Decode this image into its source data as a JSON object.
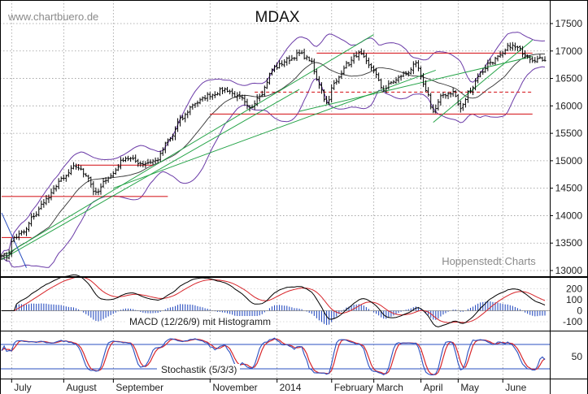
{
  "watermark": "www.chartbuero.de",
  "source": "Hoppenstedt Charts",
  "chart_data": [
    {
      "type": "line",
      "title": "MDAX",
      "ylim": [
        13000,
        17500
      ],
      "yticks": [
        13000,
        13500,
        14000,
        14500,
        15000,
        15500,
        16000,
        16500,
        17000,
        17500
      ],
      "x_labels": [
        "July",
        "August",
        "September",
        "November",
        "2014",
        "February",
        "March",
        "April",
        "May",
        "June"
      ],
      "x_label_positions": [
        6,
        27,
        47,
        86,
        113,
        135,
        152,
        171,
        186,
        204
      ],
      "n_days": 220,
      "close_anchors": [
        [
          0,
          13300
        ],
        [
          2,
          13250
        ],
        [
          5,
          13600
        ],
        [
          9,
          13700
        ],
        [
          13,
          14000
        ],
        [
          18,
          14300
        ],
        [
          24,
          14650
        ],
        [
          30,
          14900
        ],
        [
          34,
          14750
        ],
        [
          38,
          14400
        ],
        [
          43,
          14700
        ],
        [
          50,
          15050
        ],
        [
          57,
          14950
        ],
        [
          62,
          15000
        ],
        [
          68,
          15400
        ],
        [
          72,
          15750
        ],
        [
          78,
          16050
        ],
        [
          84,
          16200
        ],
        [
          90,
          16300
        ],
        [
          96,
          16150
        ],
        [
          100,
          15950
        ],
        [
          104,
          16200
        ],
        [
          110,
          16700
        ],
        [
          116,
          16850
        ],
        [
          120,
          16950
        ],
        [
          124,
          16850
        ],
        [
          128,
          16400
        ],
        [
          131,
          16050
        ],
        [
          134,
          16400
        ],
        [
          139,
          16750
        ],
        [
          144,
          16950
        ],
        [
          149,
          16700
        ],
        [
          154,
          16300
        ],
        [
          158,
          16450
        ],
        [
          163,
          16600
        ],
        [
          167,
          16750
        ],
        [
          171,
          16300
        ],
        [
          174,
          15900
        ],
        [
          178,
          16200
        ],
        [
          182,
          16250
        ],
        [
          185,
          15950
        ],
        [
          189,
          16300
        ],
        [
          193,
          16600
        ],
        [
          197,
          16800
        ],
        [
          201,
          16900
        ],
        [
          205,
          17100
        ],
        [
          208,
          17050
        ],
        [
          211,
          16950
        ],
        [
          214,
          16850
        ]
      ],
      "levels": [
        {
          "from": 0,
          "to": 67,
          "value": 14350,
          "style": "solid",
          "color": "#d8262b"
        },
        {
          "from": 0,
          "to": 12,
          "value": 13600,
          "style": "solid",
          "color": "#d8262b"
        },
        {
          "from": 30,
          "to": 61,
          "value": 14920,
          "style": "solid",
          "color": "#d8262b"
        },
        {
          "from": 127,
          "to": 214,
          "value": 16960,
          "style": "solid",
          "color": "#d8262b"
        },
        {
          "from": 84,
          "to": 214,
          "value": 15850,
          "style": "solid",
          "color": "#d8262b"
        },
        {
          "from": 102,
          "to": 214,
          "value": 16250,
          "style": "dashed",
          "color": "#d8262b"
        }
      ],
      "trendlines": [
        {
          "from": [
            0,
            13200
          ],
          "to": [
            120,
            16300
          ],
          "color": "#24a347"
        },
        {
          "from": [
            2,
            13300
          ],
          "to": [
            150,
            17300
          ],
          "color": "#24a347"
        },
        {
          "from": [
            45,
            14500
          ],
          "to": [
            175,
            16650
          ],
          "color": "#24a347"
        },
        {
          "from": [
            120,
            15900
          ],
          "to": [
            214,
            16900
          ],
          "color": "#24a347"
        },
        {
          "from": [
            174,
            15700
          ],
          "to": [
            214,
            17200
          ],
          "color": "#24a347"
        },
        {
          "from": [
            0,
            14050
          ],
          "to": [
            10,
            13050
          ],
          "color": "#2a4fc0"
        }
      ],
      "indicators": [
        "Bollinger Bands",
        "Moving Average"
      ]
    },
    {
      "type": "line",
      "title": "MACD (12/26/9) mit Histogramm",
      "ylim": [
        -150,
        250
      ],
      "yticks": [
        -100,
        0,
        100,
        200
      ],
      "series": [
        {
          "name": "MACD",
          "color": "#000000"
        },
        {
          "name": "Signal",
          "color": "#d8262b"
        },
        {
          "name": "Histogramm",
          "color": "#2a4fc0"
        }
      ]
    },
    {
      "type": "line",
      "title": "Stochastik (5/3/3)",
      "ylim": [
        0,
        100
      ],
      "yticks": [
        50
      ],
      "reference_lines": [
        80,
        20
      ],
      "series": [
        {
          "name": "%K",
          "color": "#2a4fc0"
        },
        {
          "name": "%D",
          "color": "#d8262b"
        }
      ]
    }
  ]
}
